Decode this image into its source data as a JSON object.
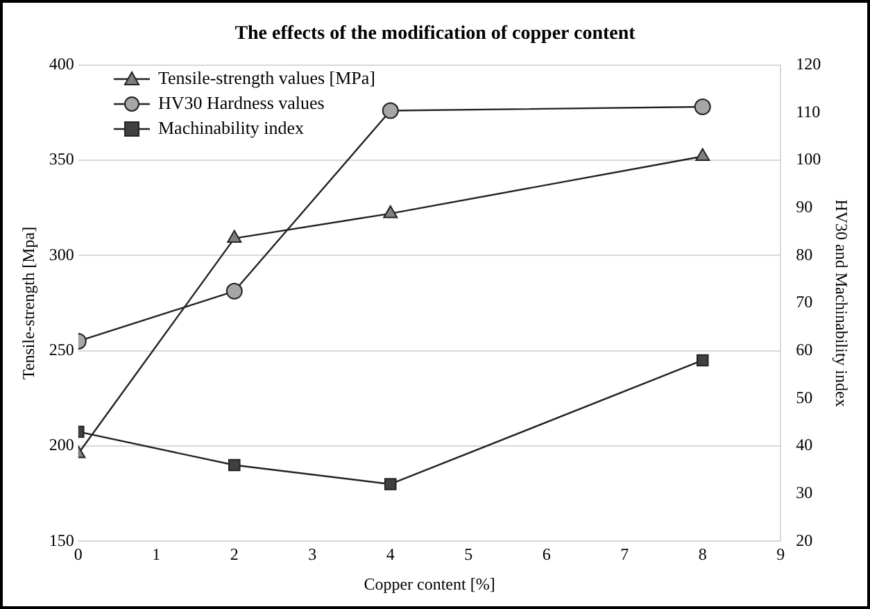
{
  "chart_data": {
    "type": "line",
    "title": "The effects of the modification of copper content",
    "xlabel": "Copper content [%]",
    "ylabel": "Tensile-strength [Mpa]",
    "y2label": "HV30 and Machinability index",
    "x": [
      0,
      2,
      4,
      8
    ],
    "xlim": [
      0,
      9
    ],
    "xticks": [
      0,
      1,
      2,
      3,
      4,
      5,
      6,
      7,
      8,
      9
    ],
    "ylim": [
      150,
      400
    ],
    "yticks": [
      150,
      200,
      250,
      300,
      350,
      400
    ],
    "y2lim": [
      20,
      120
    ],
    "y2ticks": [
      20,
      30,
      40,
      50,
      60,
      70,
      80,
      90,
      100,
      110,
      120
    ],
    "grid": "y",
    "legend": "top left",
    "line_style": "solid",
    "series": [
      {
        "name": "Tensile-strength values [MPa]",
        "color": "#808080",
        "marker": "triangle",
        "values": [
          196,
          309,
          322,
          352
        ]
      },
      {
        "name": "HV30 Hardness values",
        "color": "#a6a6a6",
        "marker": "circle",
        "axis": "y2",
        "values": [
          62,
          72.5,
          110.4,
          111.2
        ]
      },
      {
        "name": "Machinability index",
        "color": "#404040",
        "marker": "square",
        "axis": "y2",
        "values": [
          43,
          36,
          32,
          58
        ]
      }
    ]
  }
}
